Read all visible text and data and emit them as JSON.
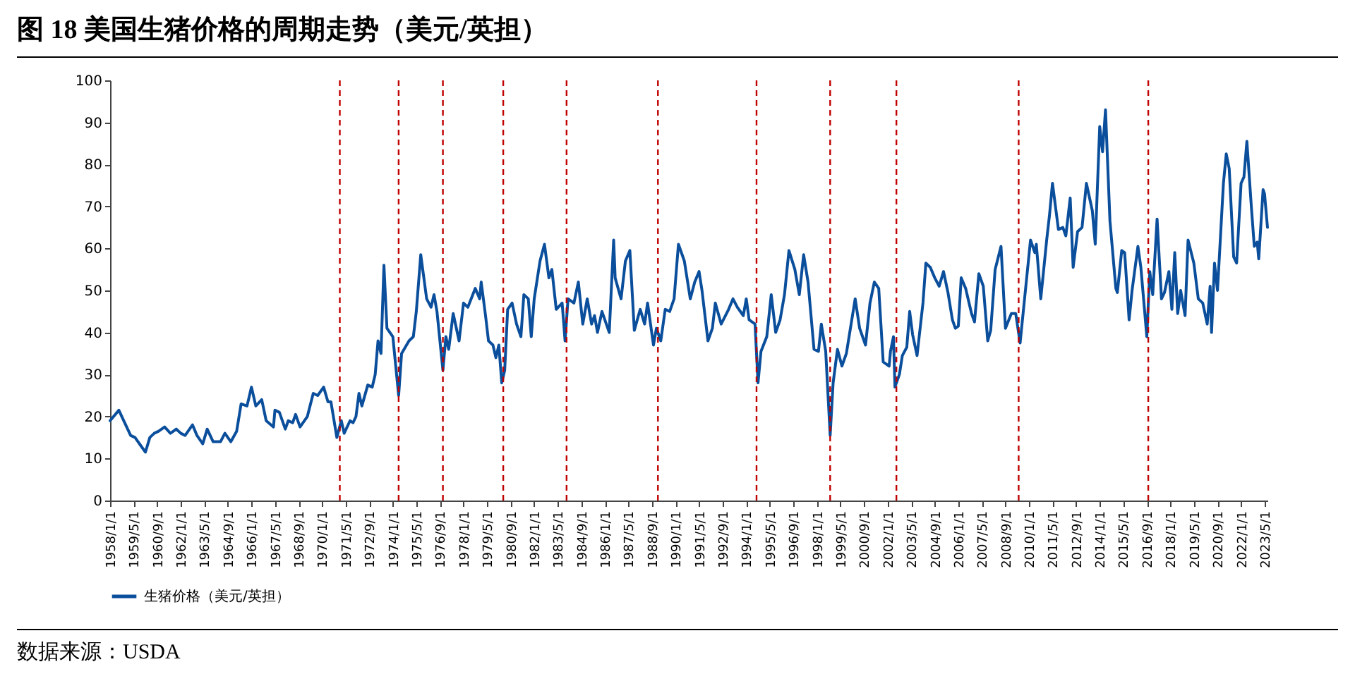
{
  "chart_data": {
    "type": "line",
    "title": "图 18 美国生猪价格的周期走势（美元/英担）",
    "annotations": [
      "数据来源：USDA"
    ],
    "x": [
      "1958-01",
      "1958-07",
      "1959-03",
      "1959-06",
      "1959-10",
      "1960-01",
      "1960-04",
      "1960-07",
      "1960-10",
      "1961-02",
      "1961-06",
      "1961-10",
      "1962-01",
      "1962-04",
      "1962-09",
      "1962-12",
      "1963-04",
      "1963-07",
      "1963-11",
      "1964-04",
      "1964-07",
      "1964-11",
      "1965-03",
      "1965-06",
      "1965-10",
      "1966-01",
      "1966-04",
      "1966-08",
      "1966-11",
      "1967-04",
      "1967-05",
      "1967-08",
      "1967-12",
      "1968-02",
      "1968-05",
      "1968-07",
      "1968-10",
      "1969-03",
      "1969-07",
      "1969-10",
      "1970-02",
      "1970-05",
      "1970-07",
      "1970-11",
      "1971-02",
      "1971-04",
      "1971-08",
      "1971-10",
      "1971-12",
      "1972-02",
      "1972-04",
      "1972-08",
      "1972-11",
      "1973-01",
      "1973-03",
      "1973-05",
      "1973-07",
      "1973-09",
      "1974-01",
      "1974-05",
      "1974-07",
      "1974-12",
      "1975-03",
      "1975-05",
      "1975-08",
      "1975-12",
      "1976-03",
      "1976-05",
      "1976-07",
      "1976-11",
      "1977-01",
      "1977-03",
      "1977-06",
      "1977-10",
      "1978-01",
      "1978-04",
      "1978-09",
      "1978-12",
      "1979-01",
      "1979-04",
      "1979-06",
      "1979-09",
      "1979-11",
      "1980-01",
      "1980-03",
      "1980-05",
      "1980-07",
      "1980-10",
      "1981-01",
      "1981-04",
      "1981-06",
      "1981-09",
      "1981-11",
      "1982-01",
      "1982-05",
      "1982-08",
      "1982-11",
      "1983-01",
      "1983-04",
      "1983-08",
      "1983-10",
      "1983-12",
      "1984-04",
      "1984-07",
      "1984-10",
      "1985-01",
      "1985-04",
      "1985-06",
      "1985-08",
      "1985-11",
      "1986-04",
      "1986-07",
      "1986-08",
      "1986-12",
      "1987-03",
      "1987-06",
      "1987-09",
      "1988-01",
      "1988-04",
      "1988-06",
      "1988-10",
      "1988-12",
      "1989-03",
      "1989-06",
      "1989-09",
      "1989-12",
      "1990-03",
      "1990-07",
      "1990-11",
      "1991-02",
      "1991-05",
      "1991-07",
      "1991-11",
      "1992-02",
      "1992-04",
      "1992-08",
      "1993-01",
      "1993-04",
      "1993-07",
      "1993-11",
      "1994-01",
      "1994-03",
      "1994-07",
      "1994-09",
      "1994-11",
      "1995-03",
      "1995-06",
      "1995-09",
      "1995-12",
      "1996-03",
      "1996-06",
      "1996-10",
      "1997-01",
      "1997-04",
      "1997-07",
      "1997-11",
      "1998-02",
      "1998-04",
      "1998-07",
      "1998-10",
      "1998-12",
      "1999-03",
      "1999-06",
      "1999-09",
      "1999-12",
      "2000-03",
      "2000-06",
      "2000-10",
      "2001-01",
      "2001-04",
      "2001-07",
      "2001-10",
      "2002-02",
      "2002-03",
      "2002-05",
      "2002-06",
      "2002-09",
      "2002-11",
      "2003-02",
      "2003-04",
      "2003-06",
      "2003-09",
      "2004-01",
      "2004-03",
      "2004-06",
      "2004-09",
      "2004-12",
      "2005-03",
      "2005-06",
      "2005-09",
      "2005-11",
      "2006-01",
      "2006-03",
      "2006-06",
      "2006-10",
      "2006-12",
      "2007-03",
      "2007-06",
      "2007-09",
      "2007-11",
      "2008-02",
      "2008-06",
      "2008-09",
      "2009-01",
      "2009-04",
      "2009-07",
      "2009-10",
      "2010-02",
      "2010-05",
      "2010-06",
      "2010-09",
      "2011-01",
      "2011-03",
      "2011-05",
      "2011-09",
      "2011-12",
      "2012-02",
      "2012-05",
      "2012-07",
      "2012-10",
      "2013-01",
      "2013-04",
      "2013-08",
      "2013-10",
      "2014-01",
      "2014-03",
      "2014-05",
      "2014-08",
      "2014-12",
      "2015-01",
      "2015-04",
      "2015-06",
      "2015-09",
      "2015-11",
      "2016-03",
      "2016-05",
      "2016-09",
      "2016-11",
      "2017-01",
      "2017-04",
      "2017-07",
      "2017-09",
      "2017-12",
      "2018-02",
      "2018-04",
      "2018-06",
      "2018-08",
      "2018-11",
      "2019-01",
      "2019-05",
      "2019-08",
      "2019-11",
      "2020-02",
      "2020-04",
      "2020-05",
      "2020-07",
      "2020-09",
      "2021-01",
      "2021-03",
      "2021-05",
      "2021-08",
      "2021-10",
      "2022-01",
      "2022-03",
      "2022-05",
      "2022-08",
      "2022-10",
      "2022-12",
      "2023-01",
      "2023-04",
      "2023-05",
      "2023-07"
    ],
    "series": [
      {
        "name": "生猪价格（美元/英担）",
        "color": "#0b4f9c",
        "values": [
          19,
          21.5,
          15.5,
          15,
          13,
          11.5,
          15,
          16,
          16.5,
          17.5,
          16,
          17,
          16,
          15.5,
          18,
          15.5,
          13.5,
          17,
          14,
          14,
          16,
          14,
          16.5,
          23,
          22.5,
          27,
          22.5,
          24,
          19,
          17.5,
          21.5,
          21,
          17,
          19,
          18.5,
          20.5,
          17.5,
          20,
          25.5,
          25,
          27,
          23.5,
          23.5,
          15,
          19,
          16,
          19,
          18.5,
          20,
          25.5,
          22.5,
          27.5,
          27,
          30,
          38,
          35,
          56,
          41,
          39,
          25,
          35,
          38,
          39,
          45,
          58.5,
          48,
          46,
          49,
          45,
          31,
          39,
          36,
          44.5,
          38,
          47,
          46,
          50.5,
          48,
          52,
          44,
          38,
          37,
          34,
          37,
          28,
          31,
          45.5,
          47,
          42,
          39,
          49,
          48,
          39,
          48,
          57,
          61,
          53,
          55,
          45.5,
          47,
          38,
          48,
          47,
          52,
          42,
          48,
          42,
          44,
          40,
          45,
          40,
          62,
          53,
          48,
          57,
          59.5,
          40.5,
          45.5,
          42,
          47,
          37,
          41,
          38,
          45.5,
          45,
          48,
          61,
          57,
          48,
          52,
          54.5,
          50,
          38,
          41,
          47,
          42,
          45.5,
          48,
          46,
          44,
          48,
          43,
          42,
          28,
          35.5,
          39,
          49,
          40,
          43,
          49,
          59.5,
          55,
          49,
          58.5,
          52,
          36,
          35.5,
          42,
          35.5,
          15.5,
          28,
          36,
          32,
          35,
          41.5,
          48,
          41,
          37,
          47,
          52,
          50.5,
          33,
          32,
          35.5,
          39,
          27,
          30,
          34.5,
          36.5,
          45,
          39.5,
          34.5,
          47,
          56.5,
          55.5,
          53,
          51,
          54.5,
          49.5,
          43,
          41,
          41.5,
          53,
          50.5,
          44.5,
          42.5,
          54,
          51,
          38,
          40.5,
          55,
          60.5,
          41,
          44.5,
          44.5,
          37.5,
          48,
          62,
          59,
          61,
          48,
          62,
          68,
          75.5,
          64.5,
          65,
          63,
          72,
          55.5,
          64,
          65,
          75.5,
          69,
          61,
          89,
          83,
          93,
          66.5,
          50.5,
          49.5,
          59.5,
          59,
          43,
          50,
          60.5,
          55.5,
          39,
          54.5,
          49,
          67,
          48,
          49.5,
          54.5,
          45.5,
          59,
          44.5,
          50,
          44,
          62,
          56.5,
          48,
          47,
          42,
          51,
          40,
          56.5,
          50,
          75.5,
          82.5,
          79,
          58,
          56.5,
          75.5,
          77,
          85.5,
          70,
          60.5,
          61.5,
          57.5,
          74,
          73,
          65
        ]
      }
    ],
    "xlim": [
      "1958-01",
      "2023-07"
    ],
    "xticks": [
      {
        "value": "1958-01",
        "label": "1958/1/1"
      },
      {
        "value": "1959-05",
        "label": "1959/5/1"
      },
      {
        "value": "1960-09",
        "label": "1960/9/1"
      },
      {
        "value": "1962-01",
        "label": "1962/1/1"
      },
      {
        "value": "1963-05",
        "label": "1963/5/1"
      },
      {
        "value": "1964-09",
        "label": "1964/9/1"
      },
      {
        "value": "1966-01",
        "label": "1966/1/1"
      },
      {
        "value": "1967-05",
        "label": "1967/5/1"
      },
      {
        "value": "1968-09",
        "label": "1968/9/1"
      },
      {
        "value": "1970-01",
        "label": "1970/1/1"
      },
      {
        "value": "1971-05",
        "label": "1971/5/1"
      },
      {
        "value": "1972-09",
        "label": "1972/9/1"
      },
      {
        "value": "1974-01",
        "label": "1974/1/1"
      },
      {
        "value": "1975-05",
        "label": "1975/5/1"
      },
      {
        "value": "1976-09",
        "label": "1976/9/1"
      },
      {
        "value": "1978-01",
        "label": "1978/1/1"
      },
      {
        "value": "1979-05",
        "label": "1979/5/1"
      },
      {
        "value": "1980-09",
        "label": "1980/9/1"
      },
      {
        "value": "1982-01",
        "label": "1982/1/1"
      },
      {
        "value": "1983-05",
        "label": "1983/5/1"
      },
      {
        "value": "1984-09",
        "label": "1984/9/1"
      },
      {
        "value": "1986-01",
        "label": "1986/1/1"
      },
      {
        "value": "1987-05",
        "label": "1987/5/1"
      },
      {
        "value": "1988-09",
        "label": "1988/9/1"
      },
      {
        "value": "1990-01",
        "label": "1990/1/1"
      },
      {
        "value": "1991-05",
        "label": "1991/5/1"
      },
      {
        "value": "1992-09",
        "label": "1992/9/1"
      },
      {
        "value": "1994-01",
        "label": "1994/1/1"
      },
      {
        "value": "1995-05",
        "label": "1995/5/1"
      },
      {
        "value": "1996-09",
        "label": "1996/9/1"
      },
      {
        "value": "1998-01",
        "label": "1998/1/1"
      },
      {
        "value": "1999-05",
        "label": "1999/5/1"
      },
      {
        "value": "2000-09",
        "label": "2000/9/1"
      },
      {
        "value": "2002-01",
        "label": "2002/1/1"
      },
      {
        "value": "2003-05",
        "label": "2003/5/1"
      },
      {
        "value": "2004-09",
        "label": "2004/9/1"
      },
      {
        "value": "2006-01",
        "label": "2006/1/1"
      },
      {
        "value": "2007-05",
        "label": "2007/5/1"
      },
      {
        "value": "2008-09",
        "label": "2008/9/1"
      },
      {
        "value": "2010-01",
        "label": "2010/1/1"
      },
      {
        "value": "2011-05",
        "label": "2011/5/1"
      },
      {
        "value": "2012-09",
        "label": "2012/9/1"
      },
      {
        "value": "2014-01",
        "label": "2014/1/1"
      },
      {
        "value": "2015-05",
        "label": "2015/5/1"
      },
      {
        "value": "2016-09",
        "label": "2016/9/1"
      },
      {
        "value": "2018-01",
        "label": "2018/1/1"
      },
      {
        "value": "2019-05",
        "label": "2019/5/1"
      },
      {
        "value": "2020-09",
        "label": "2020/9/1"
      },
      {
        "value": "2022-01",
        "label": "2022/1/1"
      },
      {
        "value": "2023-05",
        "label": "2023/5/1"
      }
    ],
    "ylim": [
      0,
      100
    ],
    "yticks": [
      0,
      10,
      20,
      30,
      40,
      50,
      60,
      70,
      80,
      90,
      100
    ],
    "ref_lines": [
      {
        "axis": "x",
        "value": "1971-01",
        "color": "#c00000",
        "line_style": "dashed"
      },
      {
        "axis": "x",
        "value": "1974-05",
        "color": "#c00000",
        "line_style": "dashed"
      },
      {
        "axis": "x",
        "value": "1976-11",
        "color": "#c00000",
        "line_style": "dashed"
      },
      {
        "axis": "x",
        "value": "1980-04",
        "color": "#c00000",
        "line_style": "dashed"
      },
      {
        "axis": "x",
        "value": "1983-11",
        "color": "#c00000",
        "line_style": "dashed"
      },
      {
        "axis": "x",
        "value": "1989-01",
        "color": "#c00000",
        "line_style": "dashed"
      },
      {
        "axis": "x",
        "value": "1994-08",
        "color": "#c00000",
        "line_style": "dashed"
      },
      {
        "axis": "x",
        "value": "1998-10",
        "color": "#c00000",
        "line_style": "dashed"
      },
      {
        "axis": "x",
        "value": "2002-07",
        "color": "#c00000",
        "line_style": "dashed"
      },
      {
        "axis": "x",
        "value": "2009-06",
        "color": "#c00000",
        "line_style": "dashed"
      },
      {
        "axis": "x",
        "value": "2016-10",
        "color": "#c00000",
        "line_style": "dashed"
      }
    ],
    "grid": false,
    "legend": "bottom",
    "marker": "none",
    "line_style": "solid"
  }
}
